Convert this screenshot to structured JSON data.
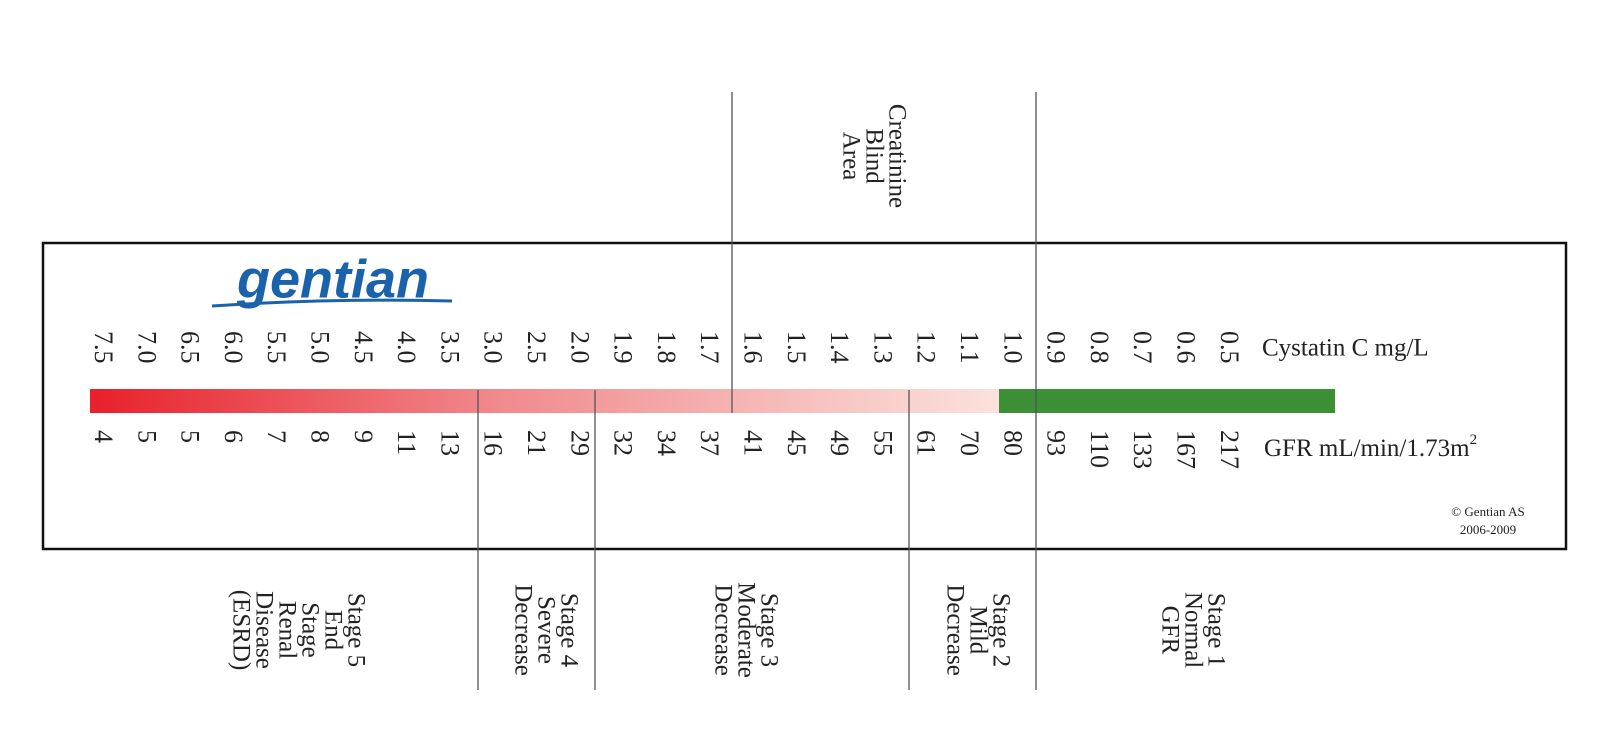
{
  "logo": "gentian",
  "cystatin": {
    "label": "Cystatin C mg/L",
    "values": [
      "7.5",
      "7.0",
      "6.5",
      "6.0",
      "5.5",
      "5.0",
      "4.5",
      "4.0",
      "3.5",
      "3.0",
      "2.5",
      "2.0",
      "1.9",
      "1.8",
      "1.7",
      "1.6",
      "1.5",
      "1.4",
      "1.3",
      "1.2",
      "1.1",
      "1.0",
      "0.9",
      "0.8",
      "0.7",
      "0.6",
      "0.5"
    ]
  },
  "gfr": {
    "label": "GFR mL/min/1.73m",
    "superscript": "2",
    "values": [
      4,
      5,
      5,
      6,
      7,
      8,
      9,
      11,
      13,
      16,
      21,
      29,
      32,
      34,
      37,
      41,
      45,
      49,
      55,
      61,
      70,
      80,
      93,
      110,
      133,
      167,
      217
    ]
  },
  "copyright": [
    "© Gentian AS",
    "2006-2009"
  ],
  "creatinine_blind_area": [
    "Creatinine",
    "Blind",
    "Area"
  ],
  "stages": [
    {
      "lines": [
        "Stage 5",
        "End",
        "Stage",
        "Renal",
        "Disease",
        "(ESRD)"
      ]
    },
    {
      "lines": [
        "Stage 4",
        "Severe",
        "Decrease"
      ]
    },
    {
      "lines": [
        "Stage 3",
        "Moderate",
        "Decrease"
      ]
    },
    {
      "lines": [
        "Stage 2",
        "Mild",
        "Decrease"
      ]
    },
    {
      "lines": [
        "Stage 1",
        "Normal",
        "GFR"
      ]
    }
  ]
}
